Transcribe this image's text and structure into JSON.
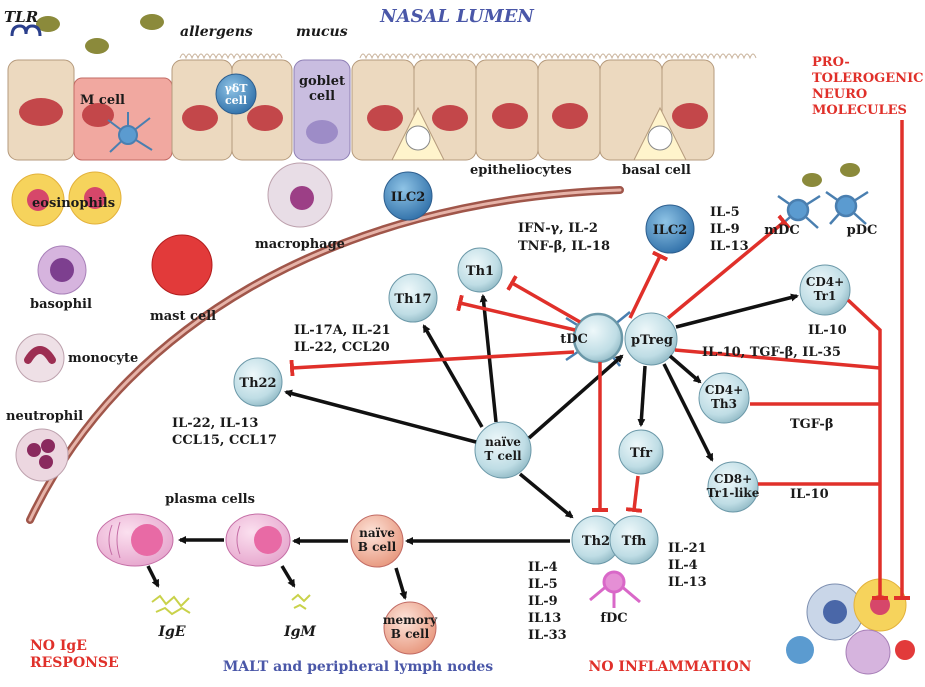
{
  "header": {
    "title": "NASAL LUMEN",
    "tlr": "TLR",
    "allergens": "allergens",
    "mucus": "mucus"
  },
  "epithelium": {
    "m_cell": "M cell",
    "gdt_line1": "γδT",
    "gdt_line2": "cell",
    "goblet_line1": "goblet",
    "goblet_line2": "cell",
    "ilc2": "ILC2",
    "epitheliocytes": "epitheliocytes",
    "basal_cell": "basal cell"
  },
  "innate_cells": {
    "eosinophils": "eosinophils",
    "basophil": "basophil",
    "mast_cell": "mast cell",
    "monocyte": "monocyte",
    "neutrophil": "neutrophil",
    "macrophage": "macrophage"
  },
  "tolerogenic": {
    "line1": "PRO-",
    "line2": "TOLEROGENIC",
    "line3": "NEURO",
    "line4": "MOLECULES"
  },
  "cells": {
    "th1": "Th1",
    "th17": "Th17",
    "th22": "Th22",
    "ilc2": "ILC2",
    "tdc": "tDC",
    "ptreg": "pTreg",
    "mdc": "mDC",
    "pdc": "pDC",
    "cd4tr1_line1": "CD4+",
    "cd4tr1_line2": "Tr1",
    "cd4th3_line1": "CD4+",
    "cd4th3_line2": "Th3",
    "cd8_line1": "CD8+",
    "cd8_line2": "Tr1-like",
    "tfr": "Tfr",
    "naive_t_line1": "naïve",
    "naive_t_line2": "T cell",
    "th2": "Th2",
    "tfh": "Tfh",
    "fdc": "fDC",
    "naive_b_line1": "naïve",
    "naive_b_line2": "B cell",
    "memory_b_line1": "memory",
    "memory_b_line2": "B cell",
    "plasma_cells": "plasma cells",
    "ige": "IgE",
    "igm": "IgM"
  },
  "cytokines": {
    "th1_line1": "IFN-γ, IL-2",
    "th1_line2": "TNF-β, IL-18",
    "ilc2_line1": "IL-5",
    "ilc2_line2": "IL-9",
    "ilc2_line3": "IL-13",
    "th17_line1": "IL-17A, IL-21",
    "th17_line2": "IL-22, CCL20",
    "th22_line1": "IL-22, IL-13",
    "th22_line2": "CCL15, CCL17",
    "tr1": "IL-10",
    "ptreg": "IL-10, TGF-β, IL-35",
    "th3": "TGF-β",
    "cd8": "IL-10",
    "tfh_line1": "IL-21",
    "tfh_line2": "IL-4",
    "tfh_line3": "IL-13",
    "th2_line1": "IL-4",
    "th2_line2": "IL-5",
    "th2_line3": "IL-9",
    "th2_line4": "IL13",
    "th2_line5": "IL-33"
  },
  "footer": {
    "no_ige_line1": "NO IgE",
    "no_ige_line2": "RESPONSE",
    "malt": "MALT and peripheral lymph nodes",
    "no_inflammation": "NO INFLAMMATION"
  },
  "colors": {
    "inhibit": "#e0302a",
    "activate": "#111111",
    "title_blue": "#4a57a8",
    "tcell_fill": "#cfe6ec",
    "epithelium": "#ecd9bf"
  }
}
